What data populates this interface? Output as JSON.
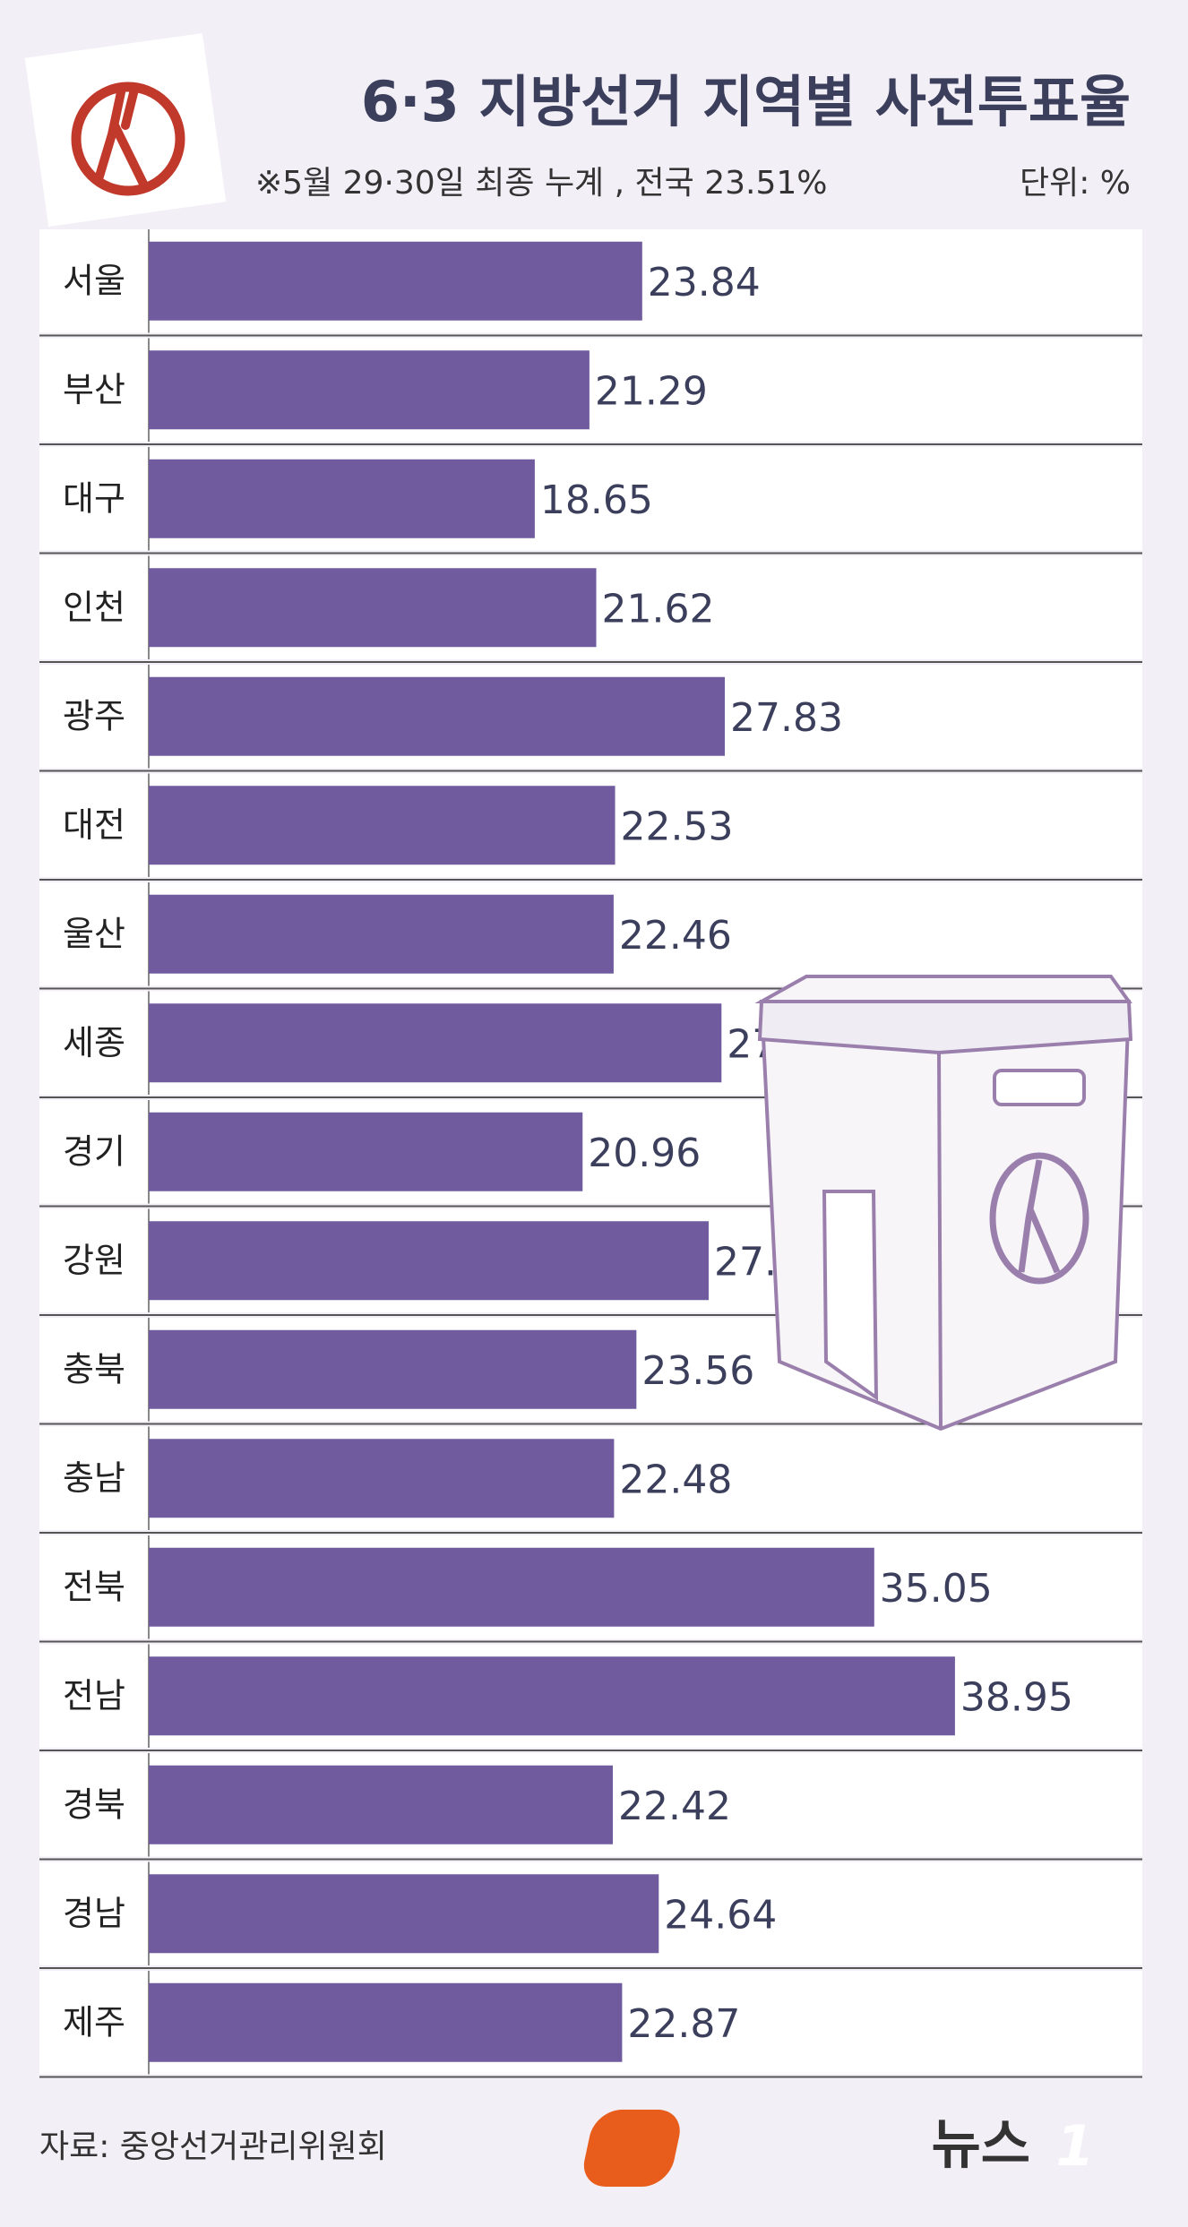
{
  "chart_data": {
    "type": "bar",
    "orientation": "horizontal",
    "title": "6·3 지방선거 지역별 사전투표율",
    "subtitle": "※5월 29·30일 최종 누계 , 전국 23.51%",
    "unit": "단위: %",
    "source": "자료: 중앙선거관리위원회",
    "logo_text": "뉴스",
    "logo_mark": "1",
    "categories": [
      "서울",
      "부산",
      "대구",
      "인천",
      "광주",
      "대전",
      "울산",
      "세종",
      "경기",
      "강원",
      "충북",
      "충남",
      "전북",
      "전남",
      "경북",
      "경남",
      "제주"
    ],
    "values": [
      23.84,
      21.29,
      18.65,
      21.62,
      27.83,
      22.53,
      22.46,
      27.67,
      20.96,
      27.05,
      23.56,
      22.48,
      35.05,
      38.95,
      22.42,
      24.64,
      22.87
    ],
    "color": "#6f5b9e",
    "xlim": [
      0,
      48
    ]
  }
}
